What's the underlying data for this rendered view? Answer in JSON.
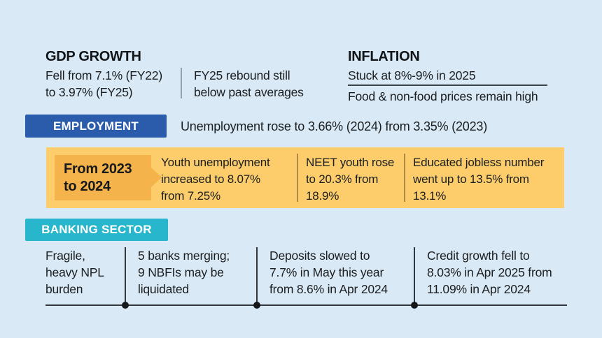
{
  "colors": {
    "background": "#d9e9f5",
    "employment-blue": "#2b5cac",
    "banking-cyan": "#27b6cb",
    "band-orange": "#fccd6a",
    "label-orange": "#f5b44b",
    "text": "#1b1e21"
  },
  "gdp": {
    "title": "GDP GROWTH",
    "primary_lines": [
      "Fell from 7.1% (FY22)",
      "to 3.97% (FY25)"
    ],
    "secondary_lines": [
      "FY25 rebound still",
      "below past averages"
    ]
  },
  "inflation": {
    "title": "INFLATION",
    "line1": "Stuck at 8%-9% in 2025",
    "line2": "Food & non-food prices remain high"
  },
  "employment": {
    "chip_label": "EMPLOYMENT",
    "headline": "Unemployment rose to 3.66% (2024) from 3.35% (2023)",
    "period_lines": [
      "From 2023",
      "to 2024"
    ],
    "stats": [
      {
        "lines": [
          "Youth unemployment",
          "increased to 8.07%",
          "from 7.25%"
        ]
      },
      {
        "lines": [
          "NEET youth rose",
          "to 20.3% from",
          "18.9%"
        ]
      },
      {
        "lines": [
          "Educated jobless number",
          "went up to 13.5% from",
          "13.1%"
        ]
      }
    ]
  },
  "banking": {
    "chip_label": "BANKING SECTOR",
    "stats": [
      {
        "lines": [
          "Fragile,",
          "heavy NPL",
          "burden"
        ]
      },
      {
        "lines": [
          "5 banks merging;",
          "9 NBFIs may be",
          "liquidated"
        ]
      },
      {
        "lines": [
          "Deposits slowed to",
          "7.7% in May this year",
          "from 8.6% in Apr 2024"
        ]
      },
      {
        "lines": [
          "Credit growth fell to",
          "8.03% in Apr 2025 from",
          "11.09% in Apr 2024"
        ]
      }
    ]
  }
}
